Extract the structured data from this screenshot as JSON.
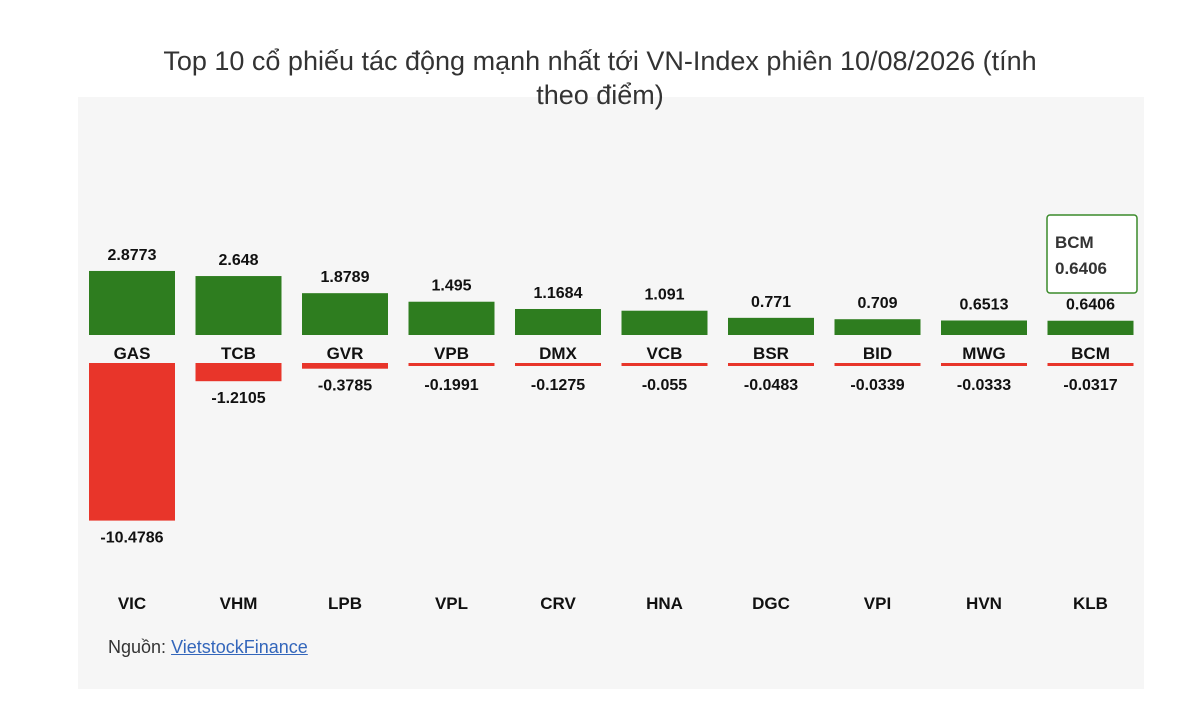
{
  "title_line1": "Top 10 cổ phiếu tác động mạnh nhất tới VN-Index phiên 10/08/2026 (tính",
  "title_line2": "theo điểm)",
  "source": {
    "label": "Nguồn:",
    "link_text": "VietstockFinance"
  },
  "colors": {
    "positive": "#2e7d1f",
    "negative": "#e8352a",
    "tooltip_border": "#3a8a2a"
  },
  "tooltip": {
    "ticker": "BCM",
    "value": "0.6406"
  },
  "chart_data": {
    "type": "bar",
    "title": "Top 10 cổ phiếu tác động mạnh nhất tới VN-Index phiên 10/08/2026 (tính theo điểm)",
    "series": [
      {
        "name": "",
        "categories": [
          "GAS",
          "TCB",
          "GVR",
          "VPB",
          "DMX",
          "VCB",
          "BSR",
          "BID",
          "MWG",
          "BCM"
        ],
        "values": [
          2.8773,
          2.648,
          1.8789,
          1.495,
          1.1684,
          1.091,
          0.771,
          0.709,
          0.6513,
          0.6406
        ],
        "labels": [
          "2.8773",
          "2.648",
          "1.8789",
          "1.495",
          "1.1684",
          "1.091",
          "0.771",
          "0.709",
          "0.6513",
          "0.6406"
        ]
      },
      {
        "name": "",
        "categories": [
          "VIC",
          "VHM",
          "LPB",
          "VPL",
          "CRV",
          "HNA",
          "DGC",
          "VPI",
          "HVN",
          "KLB"
        ],
        "values": [
          -10.4786,
          -1.2105,
          -0.3785,
          -0.1991,
          -0.1275,
          -0.055,
          -0.0483,
          -0.0339,
          -0.0333,
          -0.0317
        ],
        "labels": [
          "-10.4786",
          "-1.2105",
          "-0.3785",
          "-0.1991",
          "-0.1275",
          "-0.055",
          "-0.0483",
          "-0.0339",
          "-0.0333",
          "-0.0317"
        ]
      }
    ]
  }
}
